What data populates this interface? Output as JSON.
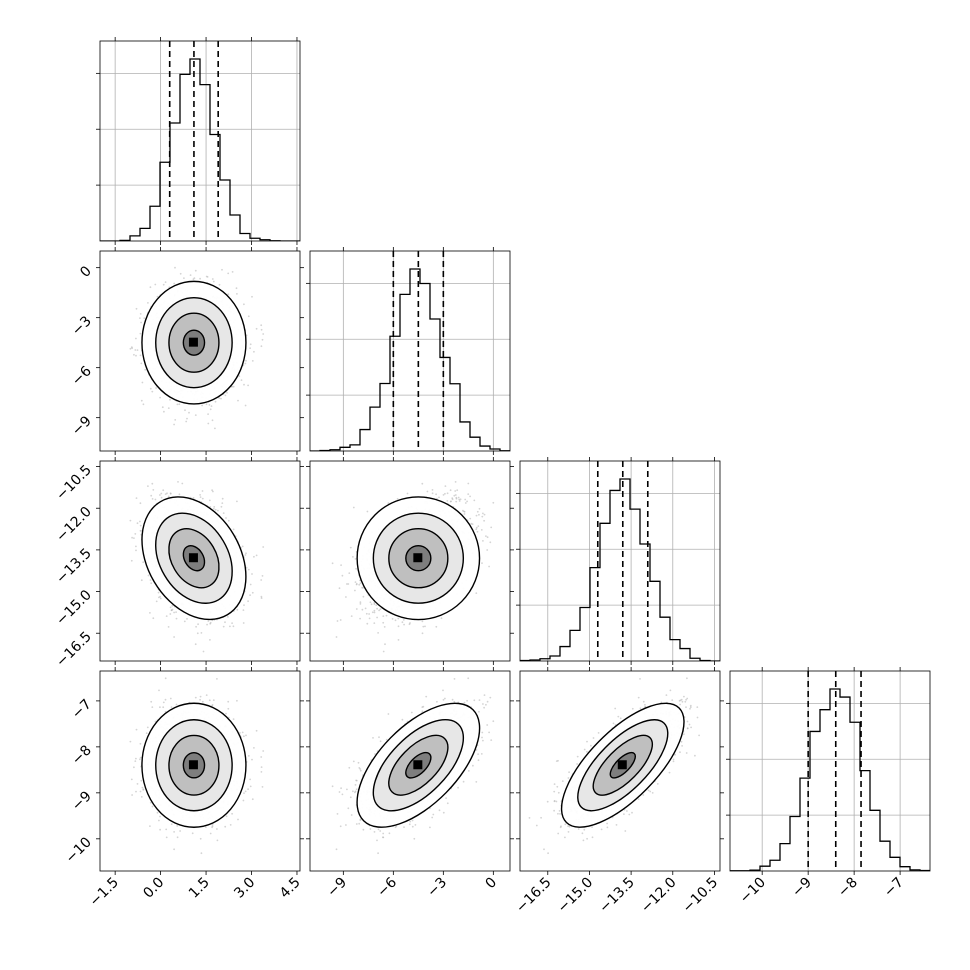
{
  "chart_data": {
    "type": "corner",
    "parameters": [
      {
        "label": "",
        "range": [
          -2.0,
          4.6
        ],
        "ticks": [
          "-1.5",
          "0.0",
          "1.5",
          "3.0",
          "4.5"
        ],
        "tick_values": [
          -1.5,
          0.0,
          1.5,
          3.0,
          4.5
        ],
        "quantiles": [
          0.3,
          1.1,
          1.9
        ],
        "mean": 1.1,
        "sd": 0.7
      },
      {
        "label": "",
        "range": [
          -11.0,
          1.0
        ],
        "ticks": [
          "-9",
          "-6",
          "-3",
          "0"
        ],
        "tick_values": [
          -9,
          -6,
          -3,
          0
        ],
        "quantiles": [
          -6.0,
          -4.5,
          -3.0
        ],
        "mean": -4.5,
        "sd": 1.5
      },
      {
        "label": "",
        "range": [
          -17.5,
          -10.3
        ],
        "ticks": [
          "-16.5",
          "-15.0",
          "-13.5",
          "-12.0",
          "-10.5"
        ],
        "tick_values": [
          -16.5,
          -15.0,
          -13.5,
          -12.0,
          -10.5
        ],
        "quantiles": [
          -14.7,
          -13.8,
          -12.9
        ],
        "mean": -13.8,
        "sd": 0.9
      },
      {
        "label": "",
        "range": [
          -10.7,
          -6.35
        ],
        "ticks": [
          "-10",
          "-9",
          "-8",
          "-7"
        ],
        "tick_values": [
          -10,
          -9,
          -8,
          -7
        ],
        "quantiles": [
          -9.0,
          -8.4,
          -7.85
        ],
        "mean": -8.4,
        "sd": 0.55
      }
    ],
    "correlations": [
      [
        1,
        0,
        -0.3,
        0
      ],
      [
        0,
        1,
        0,
        0.6
      ],
      [
        -0.3,
        0,
        1,
        0.7
      ],
      [
        0,
        0.6,
        0.7,
        1
      ]
    ],
    "histogram_bins": 20,
    "grid": true,
    "contour_levels": 4,
    "line_color": "#000000",
    "point_color": "#b0b0b0",
    "grid_color": "#b0b0b0"
  }
}
